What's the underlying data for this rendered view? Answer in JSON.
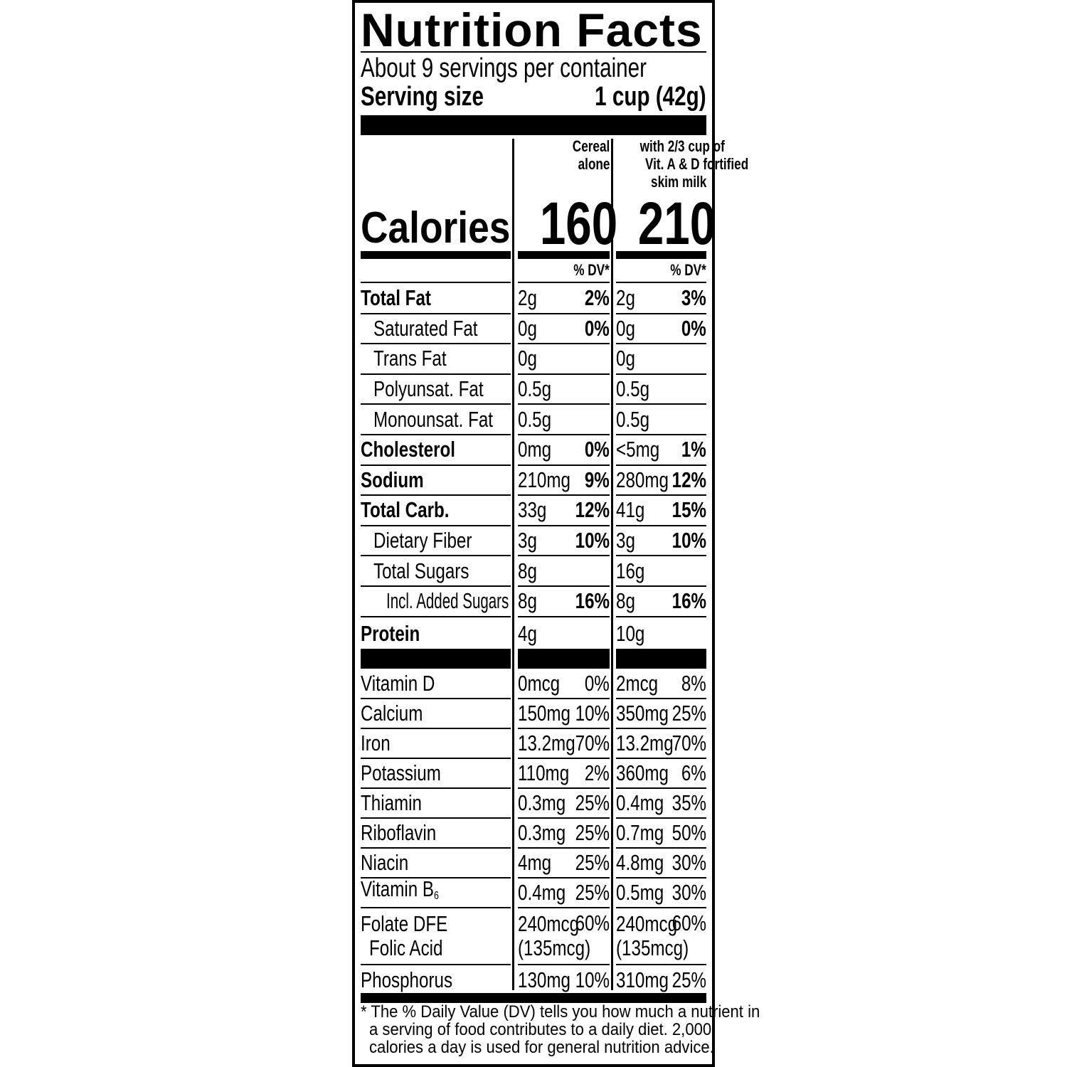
{
  "title": "Nutrition Facts",
  "servings_per_container": "About 9 servings per container",
  "serving_size": {
    "label": "Serving size",
    "value": "1 cup (42g)"
  },
  "columns": [
    {
      "header_lines": [
        "Cereal",
        "alone"
      ],
      "calories": "160",
      "dv_header": "% DV*"
    },
    {
      "header_lines": [
        "with 2/3 cup of",
        "Vit. A & D fortified",
        "skim milk"
      ],
      "calories": "210",
      "dv_header": "% DV*"
    }
  ],
  "calories_label": "Calories",
  "nutrients": [
    {
      "label": "Total Fat",
      "bold": true,
      "indent": 0,
      "v1": "2g",
      "dv1": "2%",
      "v2": "2g",
      "dv2": "3%"
    },
    {
      "label": "Saturated Fat",
      "bold": false,
      "indent": 1,
      "v1": "0g",
      "dv1": "0%",
      "v2": "0g",
      "dv2": "0%"
    },
    {
      "label": "Trans Fat",
      "bold": false,
      "indent": 1,
      "v1": "0g",
      "dv1": "",
      "v2": "0g",
      "dv2": ""
    },
    {
      "label": "Polyunsat. Fat",
      "bold": false,
      "indent": 1,
      "v1": "0.5g",
      "dv1": "",
      "v2": "0.5g",
      "dv2": ""
    },
    {
      "label": "Monounsat. Fat",
      "bold": false,
      "indent": 1,
      "v1": "0.5g",
      "dv1": "",
      "v2": "0.5g",
      "dv2": ""
    },
    {
      "label": "Cholesterol",
      "bold": true,
      "indent": 0,
      "v1": "0mg",
      "dv1": "0%",
      "v2": "<5mg",
      "dv2": "1%"
    },
    {
      "label": "Sodium",
      "bold": true,
      "indent": 0,
      "v1": "210mg",
      "dv1": "9%",
      "v2": "280mg",
      "dv2": "12%"
    },
    {
      "label": "Total Carb.",
      "bold": true,
      "indent": 0,
      "v1": "33g",
      "dv1": "12%",
      "v2": "41g",
      "dv2": "15%"
    },
    {
      "label": "Dietary Fiber",
      "bold": false,
      "indent": 1,
      "v1": "3g",
      "dv1": "10%",
      "v2": "3g",
      "dv2": "10%"
    },
    {
      "label": "Total Sugars",
      "bold": false,
      "indent": 1,
      "v1": "8g",
      "dv1": "",
      "v2": "16g",
      "dv2": ""
    },
    {
      "label": "Incl. Added Sugars",
      "bold": false,
      "indent": 2,
      "v1": "8g",
      "dv1": "16%",
      "v2": "8g",
      "dv2": "16%"
    },
    {
      "label": "Protein",
      "bold": true,
      "indent": 0,
      "v1": "4g",
      "dv1": "",
      "v2": "10g",
      "dv2": ""
    }
  ],
  "vitamins": [
    {
      "label": "Vitamin D",
      "v1": "0mcg",
      "dv1": "0%",
      "v2": "2mcg",
      "dv2": "8%"
    },
    {
      "label": "Calcium",
      "v1": "150mg",
      "dv1": "10%",
      "v2": "350mg",
      "dv2": "25%"
    },
    {
      "label": "Iron",
      "v1": "13.2mg",
      "dv1": "70%",
      "v2": "13.2mg",
      "dv2": "70%"
    },
    {
      "label": "Potassium",
      "v1": "110mg",
      "dv1": "2%",
      "v2": "360mg",
      "dv2": "6%"
    },
    {
      "label": "Thiamin",
      "v1": "0.3mg",
      "dv1": "25%",
      "v2": "0.4mg",
      "dv2": "35%"
    },
    {
      "label": "Riboflavin",
      "v1": "0.3mg",
      "dv1": "25%",
      "v2": "0.7mg",
      "dv2": "50%"
    },
    {
      "label": "Niacin",
      "v1": "4mg",
      "dv1": "25%",
      "v2": "4.8mg",
      "dv2": "30%"
    },
    {
      "label": "Vitamin B",
      "sub": "6",
      "v1": "0.4mg",
      "dv1": "25%",
      "v2": "0.5mg",
      "dv2": "30%"
    },
    {
      "label": "Folate DFE",
      "label2": "Folic Acid",
      "v1": "240mcg",
      "v1b": "(135mcg)",
      "dv1": "60%",
      "v2": "240mcg",
      "v2b": "(135mcg)",
      "dv2": "60%"
    },
    {
      "label": "Phosphorus",
      "v1": "130mg",
      "dv1": "10%",
      "v2": "310mg",
      "dv2": "25%"
    }
  ],
  "footnote": [
    "* The % Daily Value (DV) tells you how much a nutrient in",
    "a serving of food contributes to a daily diet. 2,000",
    "calories a day is used for general nutrition advice."
  ]
}
